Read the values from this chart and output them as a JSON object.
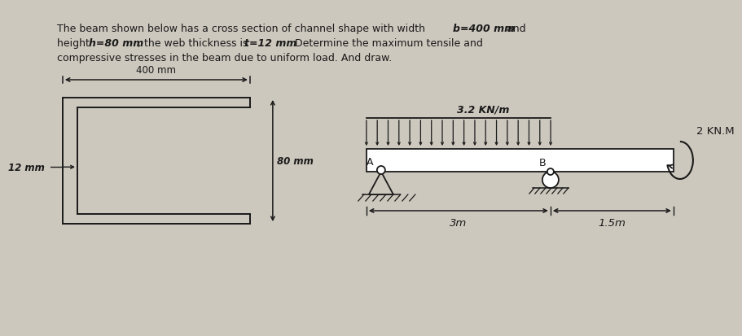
{
  "bg_color": "#cdc8be",
  "text_color": "#1a1a1a",
  "load_label": "3.2 KN/m",
  "moment_label": "2 KN.M",
  "dim_3m": "3m",
  "dim_15m": "1.5m",
  "label_400mm": "400 mm",
  "label_80mm": "80 mm",
  "label_12mm": "12 mm",
  "point_A": "A",
  "point_B": "B"
}
